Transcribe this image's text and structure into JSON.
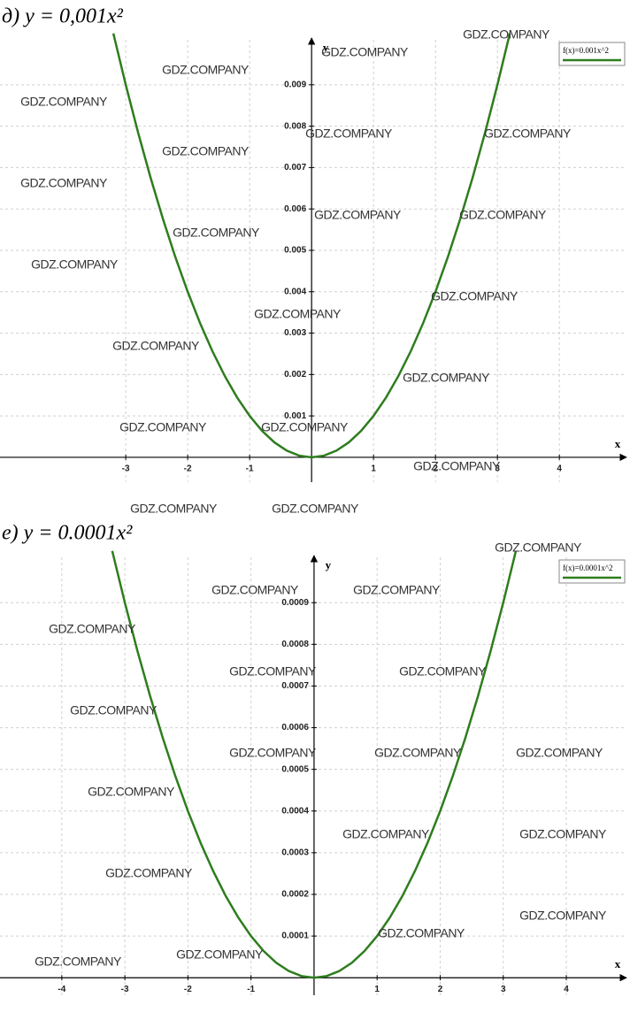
{
  "chart_data": [
    {
      "type": "line",
      "title": "д) y = 0,001x²",
      "x_label": "x",
      "y_label": "y",
      "x": [
        -3.2,
        -3.0,
        -2.8,
        -2.6,
        -2.4,
        -2.2,
        -2.0,
        -1.8,
        -1.6,
        -1.4,
        -1.2,
        -1.0,
        -0.8,
        -0.6,
        -0.4,
        -0.2,
        0,
        0.2,
        0.4,
        0.6,
        0.8,
        1.0,
        1.2,
        1.4,
        1.6,
        1.8,
        2.0,
        2.2,
        2.4,
        2.6,
        2.8,
        3.0,
        3.2
      ],
      "series": [
        {
          "name": "f(x)=0.001x^2",
          "color": "#2e7d1e",
          "values": [
            0.01024,
            0.009,
            0.00784,
            0.00676,
            0.00576,
            0.00484,
            0.004,
            0.00324,
            0.00256,
            0.00196,
            0.00144,
            0.001,
            0.00064,
            0.00036,
            0.00016,
            4e-05,
            0,
            4e-05,
            0.00016,
            0.00036,
            0.00064,
            0.001,
            0.00144,
            0.00196,
            0.00256,
            0.00324,
            0.004,
            0.00484,
            0.00576,
            0.00676,
            0.00784,
            0.009,
            0.01024
          ]
        }
      ],
      "xlim": [
        -5.03,
        5.14
      ],
      "ylim": [
        -0.0006,
        0.0103
      ],
      "xticks": [
        -3,
        -2,
        -1,
        1,
        2,
        3,
        4
      ],
      "yticks": [
        0.001,
        0.002,
        0.003,
        0.004,
        0.005,
        0.006,
        0.007,
        0.008,
        0.009
      ],
      "grid": true,
      "legend": "top-right",
      "watermark": "GDZ.COMPANY"
    },
    {
      "type": "line",
      "title": "е) y = 0.0001x²",
      "x_label": "x",
      "y_label": "y",
      "x": [
        -3.2,
        -3.0,
        -2.8,
        -2.6,
        -2.4,
        -2.2,
        -2.0,
        -1.8,
        -1.6,
        -1.4,
        -1.2,
        -1.0,
        -0.8,
        -0.6,
        -0.4,
        -0.2,
        0,
        0.2,
        0.4,
        0.6,
        0.8,
        1.0,
        1.2,
        1.4,
        1.6,
        1.8,
        2.0,
        2.2,
        2.4,
        2.6,
        2.8,
        3.0,
        3.2
      ],
      "series": [
        {
          "name": "f(x)=0.0001x^2",
          "color": "#2e7d1e",
          "values": [
            0.001024,
            0.0009,
            0.000784,
            0.000676,
            0.000576,
            0.000484,
            0.0004,
            0.000324,
            0.000256,
            0.000196,
            0.000144,
            0.0001,
            6.4e-05,
            3.6e-05,
            1.6e-05,
            4e-06,
            0,
            4e-06,
            1.6e-05,
            3.6e-05,
            6.4e-05,
            0.0001,
            0.000144,
            0.000196,
            0.000256,
            0.000324,
            0.0004,
            0.000484,
            0.000576,
            0.000676,
            0.000784,
            0.0009,
            0.001024
          ]
        }
      ],
      "xlim": [
        -4.98,
        5.01
      ],
      "ylim": [
        -4.2e-05,
        0.00103
      ],
      "xticks": [
        -4,
        -3,
        -2,
        -1,
        1,
        2,
        3,
        4
      ],
      "yticks": [
        0.0001,
        0.0002,
        0.0003,
        0.0004,
        0.0005,
        0.0006,
        0.0007,
        0.0008,
        0.0009
      ],
      "grid": true,
      "legend": "top-right",
      "watermark": "GDZ.COMPANY"
    }
  ]
}
